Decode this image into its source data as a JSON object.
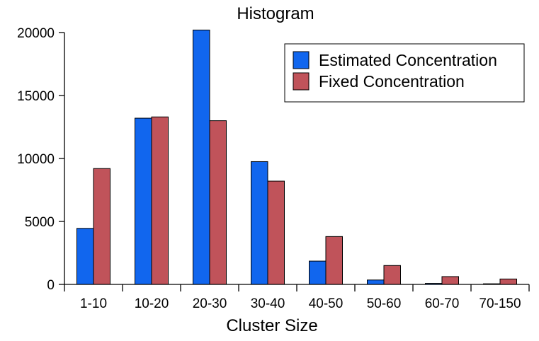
{
  "chart_data": {
    "type": "bar",
    "title": "Histogram",
    "xlabel": "Cluster Size",
    "ylabel": "",
    "categories": [
      "1-10",
      "10-20",
      "20-30",
      "30-40",
      "40-50",
      "50-60",
      "60-70",
      "70-150"
    ],
    "series": [
      {
        "name": "Estimated Concentration",
        "color": "#1166ee",
        "values": [
          4450,
          13200,
          20200,
          9750,
          1850,
          350,
          80,
          50
        ]
      },
      {
        "name": "Fixed Concentration",
        "color": "#c0535a",
        "values": [
          9200,
          13300,
          13000,
          8200,
          3800,
          1500,
          620,
          430
        ]
      }
    ],
    "ylim": [
      0,
      20000
    ],
    "yticks": [
      0,
      5000,
      10000,
      15000,
      20000
    ],
    "grid": false,
    "legend_position": "top-right"
  }
}
